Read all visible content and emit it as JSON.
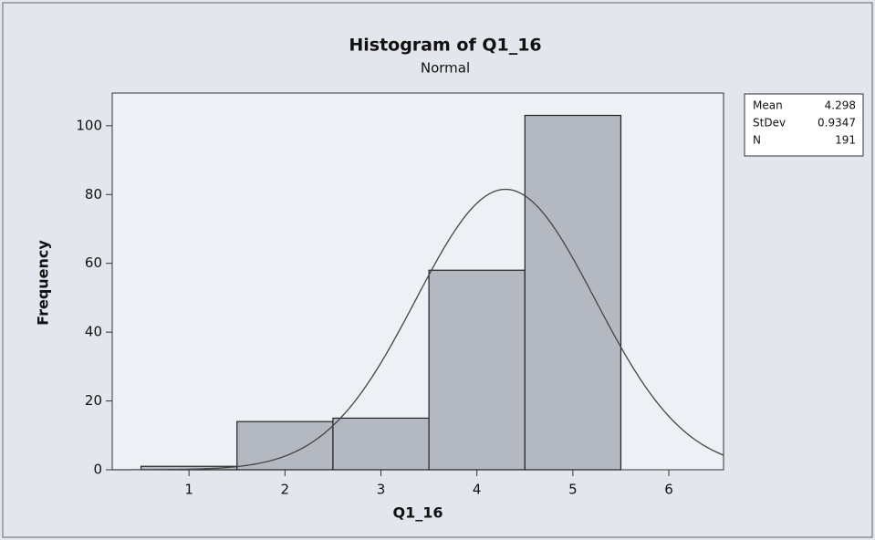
{
  "chart_data": {
    "type": "histogram",
    "title": "Histogram of Q1_16",
    "subtitle": "Normal",
    "x_label": "Q1_16",
    "y_label": "Frequency",
    "bins": [
      0.5,
      1.5,
      2.5,
      3.5,
      4.5,
      5.5
    ],
    "counts": [
      1,
      14,
      15,
      58,
      103
    ],
    "color": "#b4b8c0",
    "edge_color": "#222222",
    "curve_color": "#444444",
    "xlim": [
      0.2,
      6.57
    ],
    "xticks": [
      1,
      2,
      3,
      4,
      5,
      6
    ],
    "ylim": [
      0,
      109.5
    ],
    "yticks": [
      0,
      20,
      40,
      60,
      80,
      100
    ],
    "grid": false,
    "legend": "right",
    "stats": [
      {
        "label": "Mean",
        "value": 4.298
      },
      {
        "label": "StDev",
        "value": 0.9347
      },
      {
        "label": "N",
        "value": 191
      }
    ]
  }
}
